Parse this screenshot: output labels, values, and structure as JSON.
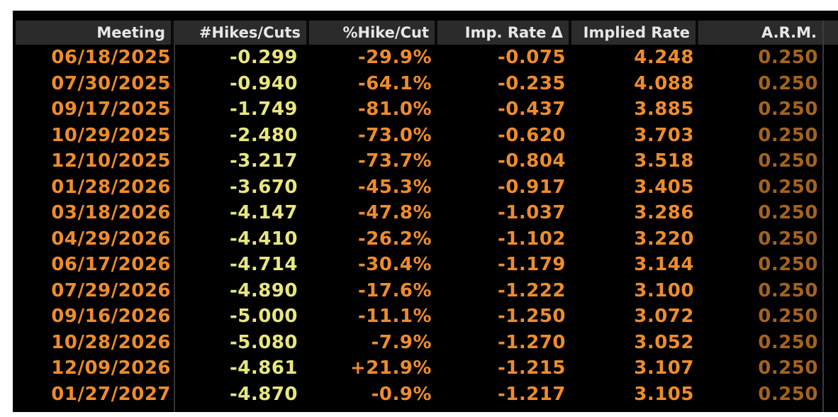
{
  "app": {
    "title": "Interest Rate Probability Table"
  },
  "colors": {
    "page_bg": "#ffffff",
    "terminal_bg": "#000000",
    "header_bg": "#2b2b2b",
    "header_text": "#e6e6ec",
    "orange_value": "#ee8c2b",
    "yellow_value": "#e9e77d",
    "dim_orange_value": "#a4631d",
    "divider": "#343434"
  },
  "table": {
    "columns": [
      {
        "key": "meeting",
        "label": "Meeting"
      },
      {
        "key": "hikes_cuts",
        "label": "#Hikes/Cuts"
      },
      {
        "key": "pct_hike_cut",
        "label": "%Hike/Cut"
      },
      {
        "key": "imp_rate_delta",
        "label": "Imp. Rate Δ"
      },
      {
        "key": "implied_rate",
        "label": "Implied Rate"
      },
      {
        "key": "arm",
        "label": "A.R.M."
      }
    ],
    "rows": [
      {
        "meeting": "06/18/2025",
        "hikes_cuts": "-0.299",
        "pct_hike_cut": "-29.9%",
        "imp_rate_delta": "-0.075",
        "implied_rate": "4.248",
        "arm": "0.250"
      },
      {
        "meeting": "07/30/2025",
        "hikes_cuts": "-0.940",
        "pct_hike_cut": "-64.1%",
        "imp_rate_delta": "-0.235",
        "implied_rate": "4.088",
        "arm": "0.250"
      },
      {
        "meeting": "09/17/2025",
        "hikes_cuts": "-1.749",
        "pct_hike_cut": "-81.0%",
        "imp_rate_delta": "-0.437",
        "implied_rate": "3.885",
        "arm": "0.250"
      },
      {
        "meeting": "10/29/2025",
        "hikes_cuts": "-2.480",
        "pct_hike_cut": "-73.0%",
        "imp_rate_delta": "-0.620",
        "implied_rate": "3.703",
        "arm": "0.250"
      },
      {
        "meeting": "12/10/2025",
        "hikes_cuts": "-3.217",
        "pct_hike_cut": "-73.7%",
        "imp_rate_delta": "-0.804",
        "implied_rate": "3.518",
        "arm": "0.250"
      },
      {
        "meeting": "01/28/2026",
        "hikes_cuts": "-3.670",
        "pct_hike_cut": "-45.3%",
        "imp_rate_delta": "-0.917",
        "implied_rate": "3.405",
        "arm": "0.250"
      },
      {
        "meeting": "03/18/2026",
        "hikes_cuts": "-4.147",
        "pct_hike_cut": "-47.8%",
        "imp_rate_delta": "-1.037",
        "implied_rate": "3.286",
        "arm": "0.250"
      },
      {
        "meeting": "04/29/2026",
        "hikes_cuts": "-4.410",
        "pct_hike_cut": "-26.2%",
        "imp_rate_delta": "-1.102",
        "implied_rate": "3.220",
        "arm": "0.250"
      },
      {
        "meeting": "06/17/2026",
        "hikes_cuts": "-4.714",
        "pct_hike_cut": "-30.4%",
        "imp_rate_delta": "-1.179",
        "implied_rate": "3.144",
        "arm": "0.250"
      },
      {
        "meeting": "07/29/2026",
        "hikes_cuts": "-4.890",
        "pct_hike_cut": "-17.6%",
        "imp_rate_delta": "-1.222",
        "implied_rate": "3.100",
        "arm": "0.250"
      },
      {
        "meeting": "09/16/2026",
        "hikes_cuts": "-5.000",
        "pct_hike_cut": "-11.1%",
        "imp_rate_delta": "-1.250",
        "implied_rate": "3.072",
        "arm": "0.250"
      },
      {
        "meeting": "10/28/2026",
        "hikes_cuts": "-5.080",
        "pct_hike_cut": "-7.9%",
        "imp_rate_delta": "-1.270",
        "implied_rate": "3.052",
        "arm": "0.250"
      },
      {
        "meeting": "12/09/2026",
        "hikes_cuts": "-4.861",
        "pct_hike_cut": "+21.9%",
        "imp_rate_delta": "-1.215",
        "implied_rate": "3.107",
        "arm": "0.250"
      },
      {
        "meeting": "01/27/2027",
        "hikes_cuts": "-4.870",
        "pct_hike_cut": "-0.9%",
        "imp_rate_delta": "-1.217",
        "implied_rate": "3.105",
        "arm": "0.250"
      }
    ]
  }
}
